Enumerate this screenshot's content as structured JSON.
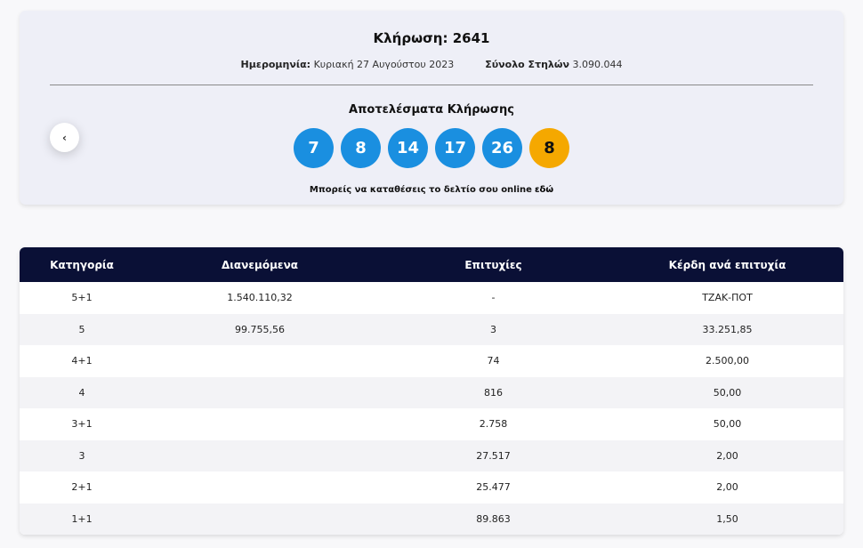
{
  "draw": {
    "title": "Κλήρωση: 2641",
    "date_label": "Ημερομηνία:",
    "date_value": "Κυριακή 27 Αυγούστου 2023",
    "columns_label": "Σύνολο Στηλών",
    "columns_value": "3.090.044",
    "results_title": "Αποτελέσματα Κλήρωσης",
    "numbers": [
      "7",
      "8",
      "14",
      "17",
      "26"
    ],
    "joker": "8",
    "online_text": "Μπορείς να καταθέσεις το δελτίο σου online",
    "online_link": "εδώ",
    "prev_icon": "‹",
    "colors": {
      "ball": "#1a8fe0",
      "joker": "#f5a800",
      "header": "#0a1036"
    }
  },
  "table": {
    "headers": [
      "Κατηγορία",
      "Διανεμόμενα",
      "Επιτυχίες",
      "Κέρδη ανά επιτυχία"
    ],
    "rows": [
      [
        "5+1",
        "1.540.110,32",
        "-",
        "ΤΖΑΚ-ΠΟΤ"
      ],
      [
        "5",
        "99.755,56",
        "3",
        "33.251,85"
      ],
      [
        "4+1",
        "",
        "74",
        "2.500,00"
      ],
      [
        "4",
        "",
        "816",
        "50,00"
      ],
      [
        "3+1",
        "",
        "2.758",
        "50,00"
      ],
      [
        "3",
        "",
        "27.517",
        "2,00"
      ],
      [
        "2+1",
        "",
        "25.477",
        "2,00"
      ],
      [
        "1+1",
        "",
        "89.863",
        "1,50"
      ]
    ]
  }
}
